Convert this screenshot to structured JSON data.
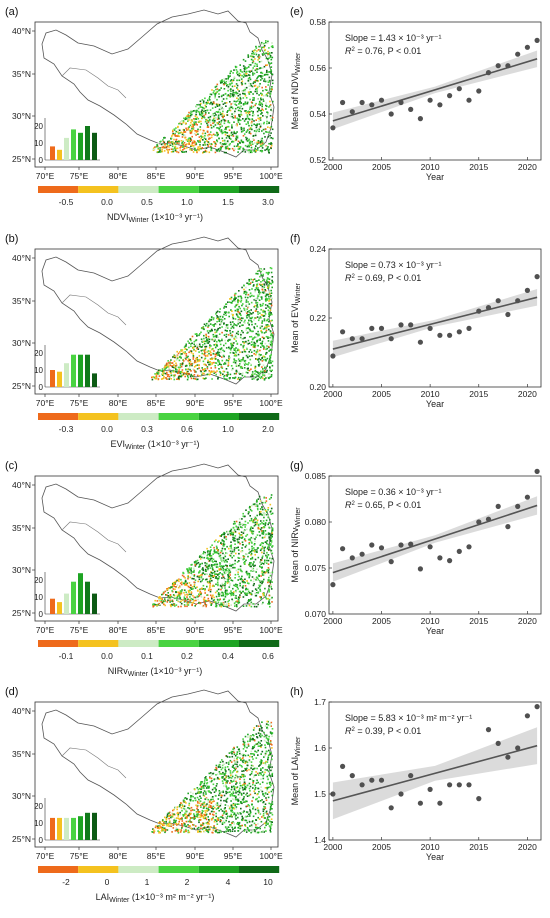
{
  "figure": {
    "map_ticks_x": [
      "70°E",
      "75°E",
      "80°E",
      "85°E",
      "90°E",
      "95°E",
      "100°E"
    ],
    "map_ticks_y": [
      "40°N",
      "35°N",
      "30°N",
      "25°N"
    ],
    "hist_ticks_y": [
      "20",
      "10",
      "0"
    ],
    "year_label": "Year",
    "year_ticks": [
      "2000",
      "2005",
      "2010",
      "2015",
      "2020"
    ]
  },
  "chart_data": [
    {
      "panel": "(a)",
      "type": "map",
      "legend_label": "NDVI",
      "legend_sub": "Winter",
      "legend_units": " (1×10⁻³ yr⁻¹)",
      "legend_ticks": [
        "-0.5",
        "0.0",
        "0.5",
        "1.0",
        "1.5",
        "3.0"
      ],
      "legend_colors": [
        "#ee6a1b",
        "#f4c21f",
        "#cdebc4",
        "#49d341",
        "#1ea423",
        "#106a18"
      ],
      "hist_values": [
        8,
        6,
        13,
        18,
        16,
        20,
        16
      ]
    },
    {
      "panel": "(e)",
      "type": "scatter",
      "ylabel": "Mean of NDVI",
      "ylabel_sub": "Winter",
      "ylim": [
        0.52,
        0.58
      ],
      "yticks": [
        "0.52",
        "0.54",
        "0.56",
        "0.58"
      ],
      "x": [
        2000,
        2001,
        2002,
        2003,
        2004,
        2005,
        2006,
        2007,
        2008,
        2009,
        2010,
        2011,
        2012,
        2013,
        2014,
        2015,
        2016,
        2017,
        2018,
        2019,
        2020,
        2021
      ],
      "y": [
        0.534,
        0.545,
        0.541,
        0.545,
        0.544,
        0.546,
        0.54,
        0.545,
        0.542,
        0.538,
        0.546,
        0.544,
        0.548,
        0.551,
        0.546,
        0.55,
        0.558,
        0.561,
        0.561,
        0.566,
        0.569,
        0.572
      ],
      "fit": [
        0.537,
        0.564
      ],
      "ci": [
        0.0036,
        0.0014,
        0.0036
      ],
      "slope_text": "Slope = 1.43 × 10⁻³ yr⁻¹",
      "r2_text": "= 0.76, P < 0.01"
    },
    {
      "panel": "(b)",
      "type": "map",
      "legend_label": "EVI",
      "legend_sub": "Winter",
      "legend_units": " (1×10⁻³ yr⁻¹)",
      "legend_ticks": [
        "-0.3",
        "0.0",
        "0.3",
        "0.6",
        "1.0",
        "2.0"
      ],
      "legend_colors": [
        "#ee6a1b",
        "#f4c21f",
        "#cdebc4",
        "#49d341",
        "#1ea423",
        "#106a18"
      ],
      "hist_values": [
        10,
        9,
        14,
        19,
        19,
        19,
        8
      ]
    },
    {
      "panel": "(f)",
      "type": "scatter",
      "ylabel": "Mean of EVI",
      "ylabel_sub": "Winter",
      "ylim": [
        0.2,
        0.24
      ],
      "yticks": [
        "0.20",
        "0.22",
        "0.24"
      ],
      "x": [
        2000,
        2001,
        2002,
        2003,
        2004,
        2005,
        2006,
        2007,
        2008,
        2009,
        2010,
        2011,
        2012,
        2013,
        2014,
        2015,
        2016,
        2017,
        2018,
        2019,
        2020,
        2021
      ],
      "y": [
        0.209,
        0.216,
        0.214,
        0.214,
        0.217,
        0.217,
        0.214,
        0.218,
        0.218,
        0.213,
        0.217,
        0.215,
        0.215,
        0.216,
        0.217,
        0.222,
        0.223,
        0.225,
        0.221,
        0.225,
        0.228,
        0.232
      ],
      "fit": [
        0.211,
        0.226
      ],
      "ci": [
        0.0024,
        0.001,
        0.0024
      ],
      "slope_text": "Slope = 0.73 × 10⁻³ yr⁻¹",
      "r2_text": "= 0.69, P < 0.01"
    },
    {
      "panel": "(c)",
      "type": "map",
      "legend_label": "NIRv",
      "legend_sub": "Winter",
      "legend_units": " (1×10⁻³ yr⁻¹)",
      "legend_ticks": [
        "-0.1",
        "0.0",
        "0.1",
        "0.2",
        "0.4",
        "0.6"
      ],
      "legend_colors": [
        "#ee6a1b",
        "#f4c21f",
        "#cdebc4",
        "#49d341",
        "#1ea423",
        "#106a18"
      ],
      "hist_values": [
        9,
        7,
        12,
        19,
        24,
        19,
        12
      ]
    },
    {
      "panel": "(g)",
      "type": "scatter",
      "ylabel": "Mean of NIRv",
      "ylabel_sub": "Winter",
      "ylim": [
        0.07,
        0.085
      ],
      "yticks": [
        "0.070",
        "0.075",
        "0.080",
        "0.085"
      ],
      "x": [
        2000,
        2001,
        2002,
        2003,
        2004,
        2005,
        2006,
        2007,
        2008,
        2009,
        2010,
        2011,
        2012,
        2013,
        2014,
        2015,
        2016,
        2017,
        2018,
        2019,
        2020,
        2021
      ],
      "y": [
        0.0732,
        0.0771,
        0.0761,
        0.0765,
        0.0775,
        0.0772,
        0.0757,
        0.0775,
        0.0776,
        0.0749,
        0.0773,
        0.0761,
        0.0758,
        0.0768,
        0.0773,
        0.08,
        0.0803,
        0.0817,
        0.0795,
        0.0817,
        0.0827,
        0.0855
      ],
      "fit": [
        0.0745,
        0.0818
      ],
      "ci": [
        0.001,
        0.0004,
        0.001
      ],
      "slope_text": "Slope = 0.36 × 10⁻³ yr⁻¹",
      "r2_text": "= 0.65, P < 0.01"
    },
    {
      "panel": "(d)",
      "type": "map",
      "legend_label": "LAI",
      "legend_sub": "Winter",
      "legend_units": " (1×10⁻³ m² m⁻² yr⁻¹)",
      "legend_ticks": [
        "-2",
        "0",
        "1",
        "2",
        "4",
        "10"
      ],
      "legend_colors": [
        "#ee6a1b",
        "#f4c21f",
        "#cdebc4",
        "#49d341",
        "#1ea423",
        "#106a18"
      ],
      "hist_values": [
        13,
        13,
        13,
        13,
        14,
        16,
        16
      ]
    },
    {
      "panel": "(h)",
      "type": "scatter",
      "ylabel": "Mean of LAI",
      "ylabel_sub": "Winter",
      "ylim": [
        1.4,
        1.7
      ],
      "yticks": [
        "1.4",
        "1.5",
        "1.6",
        "1.7"
      ],
      "x": [
        2000,
        2001,
        2002,
        2003,
        2004,
        2005,
        2006,
        2007,
        2008,
        2009,
        2010,
        2011,
        2012,
        2013,
        2014,
        2015,
        2016,
        2017,
        2018,
        2019,
        2020,
        2021
      ],
      "y": [
        1.5,
        1.56,
        1.54,
        1.52,
        1.53,
        1.53,
        1.47,
        1.5,
        1.54,
        1.48,
        1.51,
        1.48,
        1.52,
        1.52,
        1.52,
        1.49,
        1.64,
        1.61,
        1.58,
        1.6,
        1.67,
        1.69
      ],
      "fit": [
        1.485,
        1.605
      ],
      "ci": [
        0.04,
        0.016,
        0.04
      ],
      "slope_text": "Slope = 5.83 × 10⁻³ m² m⁻² yr⁻¹",
      "r2_text": "= 0.39, P < 0.01"
    }
  ]
}
